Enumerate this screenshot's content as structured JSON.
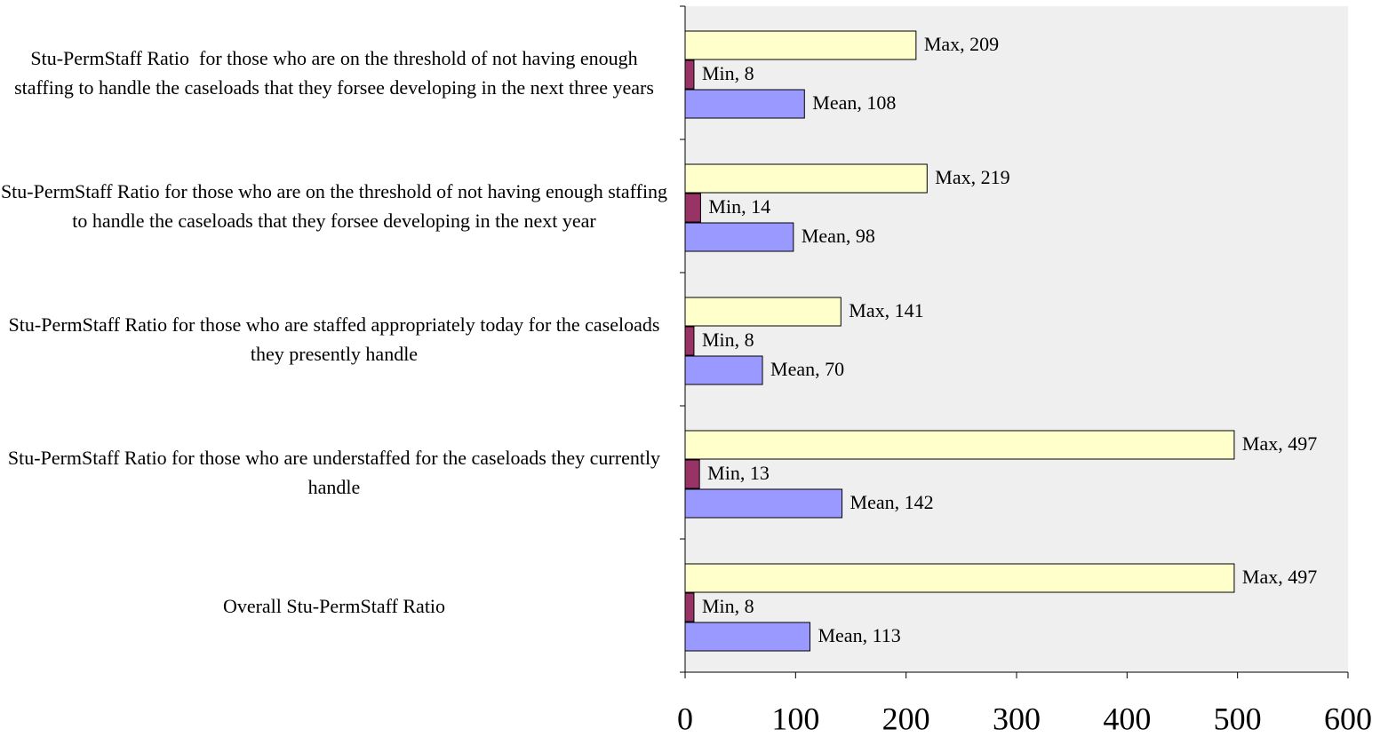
{
  "chart_data": {
    "type": "bar",
    "orientation": "horizontal",
    "categories": [
      "Stu-PermStaff Ratio  for those who are on the threshold of not having enough staffing to handle the caseloads that they forsee developing in the next three years",
      "Stu-PermStaff Ratio for those who are on the threshold of not having enough staffing to handle the caseloads that they forsee developing in the next year",
      "Stu-PermStaff Ratio for those who are staffed appropriately today for the caseloads they presently handle",
      "Stu-PermStaff Ratio for those who are understaffed for the caseloads they currently handle",
      "Overall Stu-PermStaff Ratio"
    ],
    "series": [
      {
        "color": "#ffffcc",
        "values": [
          209,
          219,
          141,
          497,
          497
        ],
        "value_labels": [
          "Max, 209",
          "Max, 219",
          "Max, 141",
          "Max, 497",
          "Max, 497"
        ]
      },
      {
        "color": "#993366",
        "values": [
          8,
          14,
          8,
          13,
          8
        ],
        "value_labels": [
          "Min, 8",
          "Min, 14",
          "Min, 8",
          "Min, 13",
          "Min, 8"
        ]
      },
      {
        "color": "#9999ff",
        "values": [
          108,
          98,
          70,
          142,
          113
        ],
        "value_labels": [
          "Mean, 108",
          "Mean, 98",
          "Mean, 70",
          "Mean, 142",
          "Mean, 113"
        ]
      }
    ],
    "xlim": [
      0,
      600
    ],
    "xticks": [
      0,
      100,
      200,
      300,
      400,
      500,
      600
    ],
    "plot_background": "#efefef"
  }
}
